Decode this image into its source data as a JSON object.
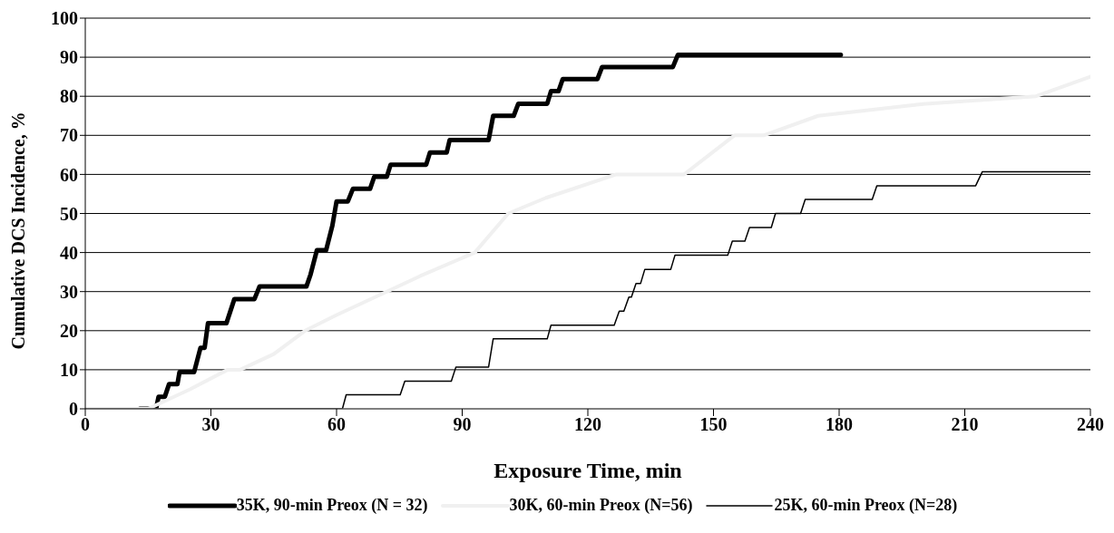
{
  "chart_data": {
    "type": "line",
    "xlabel": "Exposure Time, min",
    "ylabel": "Cumulative DCS Incidence, %",
    "xlim": [
      0,
      240
    ],
    "xticks": [
      0,
      30,
      60,
      90,
      120,
      150,
      180,
      210,
      240
    ],
    "ylim": [
      0,
      100
    ],
    "yticks": [
      0,
      10,
      20,
      30,
      40,
      50,
      60,
      70,
      80,
      90,
      100
    ],
    "grid": "y",
    "legend": "bottom",
    "marker": "none",
    "line_style": "solid",
    "series": [
      {
        "name": "35K, 90-min Preox (N = 32)",
        "color": "#000000",
        "x": [
          13,
          16.9,
          17.5,
          19,
          20,
          22,
          22.5,
          26,
          27.5,
          28.5,
          29.3,
          33.7,
          35.6,
          40.4,
          41.6,
          52.8,
          53.8,
          55.3,
          57.5,
          59,
          60,
          62.7,
          63.9,
          68,
          69,
          72,
          72.9,
          81.4,
          82.3,
          86.3,
          87,
          96.3,
          97.4,
          102.3,
          103.4,
          110.3,
          111.2,
          113,
          114,
          122.3,
          123.4,
          140.3,
          141.5,
          180.4
        ],
        "values": [
          0,
          0,
          3.1,
          3.1,
          6.3,
          6.3,
          9.4,
          9.4,
          15.6,
          15.6,
          21.9,
          21.9,
          28.1,
          28.1,
          31.3,
          31.3,
          34.4,
          40.6,
          40.6,
          46.9,
          53.1,
          53.1,
          56.3,
          56.3,
          59.4,
          59.4,
          62.5,
          62.5,
          65.6,
          65.6,
          68.8,
          68.8,
          75,
          75,
          78.1,
          78.1,
          81.3,
          81.3,
          84.4,
          84.4,
          87.5,
          87.5,
          90.6,
          90.6
        ]
      },
      {
        "name": "30K, 60-min Preox (N=56)",
        "color": "#f0f0f0",
        "x": [
          0,
          15,
          25,
          34,
          37,
          45,
          52.5,
          60,
          72,
          80,
          93,
          101,
          110,
          126.8,
          143,
          155,
          162,
          175,
          200,
          227,
          240
        ],
        "values": [
          0,
          0,
          5,
          10,
          10,
          14,
          20,
          24,
          30,
          34,
          40,
          50,
          54,
          60,
          60,
          70,
          70,
          75,
          78,
          80,
          85
        ]
      },
      {
        "name": "25K, 60-min Preox (N=28)",
        "color": "#000000",
        "x": [
          0,
          61.4,
          62.3,
          75.2,
          76.3,
          87.4,
          88.5,
          96.3,
          97.4,
          110.3,
          111.2,
          126.3,
          127.5,
          128.6,
          129.8,
          130.4,
          131.5,
          132.6,
          133.6,
          139.8,
          140.8,
          153.4,
          154.5,
          157.5,
          158.6,
          163.8,
          164.8,
          170.8,
          171.9,
          187.9,
          189,
          212.6,
          214.2,
          240
        ],
        "values": [
          0,
          0,
          3.6,
          3.6,
          7.1,
          7.1,
          10.7,
          10.7,
          17.9,
          17.9,
          21.4,
          21.4,
          25,
          25,
          28.6,
          28.6,
          32.1,
          32.1,
          35.7,
          35.7,
          39.3,
          39.3,
          42.9,
          42.9,
          46.4,
          46.4,
          50,
          50,
          53.6,
          53.6,
          57.1,
          57.1,
          60.7,
          60.7
        ]
      }
    ]
  }
}
